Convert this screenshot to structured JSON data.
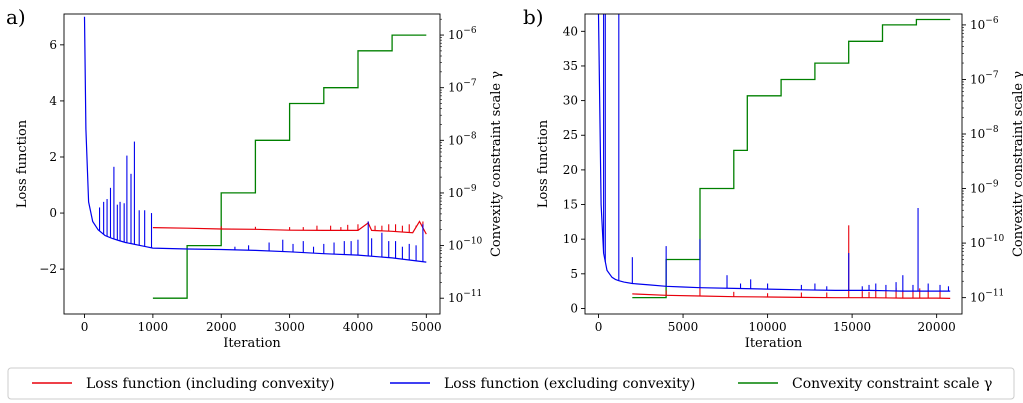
{
  "colors": {
    "red": "#e8000b",
    "blue": "#0000ee",
    "green": "#008000",
    "axis": "#000000"
  },
  "legend": {
    "items": [
      {
        "label": "Loss function (including convexity)",
        "color": "#e8000b"
      },
      {
        "label": "Loss function (excluding convexity)",
        "color": "#0000ee"
      },
      {
        "label": "Convexity constraint scale γ",
        "color": "#008000"
      }
    ]
  },
  "chart_data": [
    {
      "panel_label": "a)",
      "type": "line",
      "xlabel": "Iteration",
      "ylabel": "Loss function",
      "y2label": "Convexity constraint scale γ",
      "xlim": [
        -300,
        5200
      ],
      "ylim": [
        -3.6,
        7.1
      ],
      "y2lim_log10": [
        -11.3,
        -5.6
      ],
      "xticks": [
        0,
        1000,
        2000,
        3000,
        4000,
        5000
      ],
      "xtick_labels": [
        "0",
        "1000",
        "2000",
        "3000",
        "4000",
        "5000"
      ],
      "yticks": [
        -2,
        0,
        2,
        4,
        6
      ],
      "ytick_labels": [
        "−2",
        "0",
        "2",
        "4",
        "6"
      ],
      "y2ticks_log10": [
        -11,
        -10,
        -9,
        -8,
        -7,
        -6
      ],
      "y2tick_labels": [
        "10−11",
        "10−10",
        "10−9",
        "10−8",
        "10−7",
        "10−6"
      ],
      "series": [
        {
          "name": "Loss function (including convexity)",
          "color": "red",
          "x": [
            1000,
            1500,
            2000,
            2500,
            3000,
            3500,
            4000,
            4150,
            4200,
            4500,
            4800,
            4900,
            5000
          ],
          "y": [
            -0.52,
            -0.54,
            -0.57,
            -0.58,
            -0.61,
            -0.62,
            -0.62,
            -0.35,
            -0.62,
            -0.65,
            -0.7,
            -0.3,
            -0.75
          ],
          "spikes": {
            "x": [
              2000,
              2500,
              3000,
              3200,
              3400,
              3600,
              3750,
              3850,
              4000,
              4150,
              4250,
              4350,
              4450,
              4550,
              4650,
              4750,
              4850,
              4950
            ],
            "y": [
              -0.47,
              -0.49,
              -0.5,
              -0.5,
              -0.45,
              -0.45,
              -0.5,
              -0.42,
              -0.4,
              -0.3,
              -0.45,
              -0.45,
              -0.4,
              -0.4,
              -0.45,
              -0.4,
              -0.45,
              -0.3
            ]
          }
        },
        {
          "name": "Loss function (excluding convexity)",
          "color": "blue",
          "x": [
            0,
            20,
            60,
            120,
            200,
            300,
            400,
            500,
            600,
            700,
            800,
            900,
            1000,
            1500,
            2000,
            2500,
            3000,
            3500,
            4000,
            4500,
            5000
          ],
          "y": [
            7.0,
            3.0,
            0.4,
            -0.3,
            -0.6,
            -0.8,
            -0.9,
            -0.98,
            -1.05,
            -1.1,
            -1.15,
            -1.2,
            -1.25,
            -1.28,
            -1.3,
            -1.33,
            -1.38,
            -1.45,
            -1.5,
            -1.6,
            -1.75
          ],
          "spikes": {
            "x": [
              220,
              280,
              330,
              380,
              430,
              480,
              520,
              580,
              620,
              680,
              730,
              800,
              880,
              980,
              2200,
              2400,
              2700,
              2900,
              3050,
              3200,
              3350,
              3500,
              3650,
              3800,
              3900,
              4000,
              4150,
              4200,
              4350,
              4450,
              4550,
              4650,
              4750,
              4850,
              4950
            ],
            "y": [
              0.2,
              0.4,
              0.5,
              0.9,
              1.65,
              0.3,
              0.4,
              0.35,
              2.05,
              1.4,
              2.55,
              0.1,
              0.1,
              0.0,
              -1.2,
              -1.15,
              -1.05,
              -0.95,
              -1.1,
              -1.0,
              -1.2,
              -1.1,
              -1.05,
              -1.0,
              -1.0,
              -0.95,
              -0.3,
              -0.9,
              -0.7,
              -1.0,
              -1.0,
              -1.2,
              -1.1,
              -1.15,
              -0.4
            ]
          }
        },
        {
          "name": "Convexity constraint scale γ",
          "color": "green",
          "axis": "right-log",
          "step_x": [
            1000,
            1500,
            2000,
            2500,
            3000,
            3500,
            4000,
            4500,
            5000
          ],
          "step_log10": [
            -11.0,
            -10.0,
            -9.0,
            -8.0,
            -7.3,
            -7.0,
            -6.3,
            -6.0
          ]
        }
      ]
    },
    {
      "panel_label": "b)",
      "type": "line",
      "xlabel": "Iteration",
      "ylabel": "Loss function",
      "y2label": "Convexity constraint scale γ",
      "xlim": [
        -800,
        21500
      ],
      "ylim": [
        -0.8,
        42.5
      ],
      "y2lim_log10": [
        -11.3,
        -5.8
      ],
      "xticks": [
        0,
        5000,
        10000,
        15000,
        20000
      ],
      "xtick_labels": [
        "0",
        "5000",
        "10000",
        "15000",
        "20000"
      ],
      "yticks": [
        0,
        5,
        10,
        15,
        20,
        25,
        30,
        35,
        40
      ],
      "ytick_labels": [
        "0",
        "5",
        "10",
        "15",
        "20",
        "25",
        "30",
        "35",
        "40"
      ],
      "y2ticks_log10": [
        -11,
        -10,
        -9,
        -8,
        -7,
        -6
      ],
      "y2tick_labels": [
        "10−11",
        "10−10",
        "10−9",
        "10−8",
        "10−7",
        "10−6"
      ],
      "series": [
        {
          "name": "Loss function (including convexity)",
          "color": "red",
          "x": [
            2000,
            4000,
            6000,
            8000,
            10000,
            12000,
            14000,
            16000,
            18000,
            20000,
            20800
          ],
          "y": [
            2.1,
            1.9,
            1.8,
            1.7,
            1.65,
            1.6,
            1.55,
            1.55,
            1.5,
            1.5,
            1.45
          ],
          "spikes": {
            "x": [
              4000,
              6000,
              8000,
              10000,
              12000,
              13500,
              14800,
              15600,
              16000,
              16400,
              17000,
              17600,
              18000,
              18600,
              19000,
              19500,
              20200
            ],
            "y": [
              2.6,
              3.0,
              2.4,
              2.2,
              2.3,
              2.3,
              12.0,
              2.5,
              2.4,
              2.6,
              2.5,
              3.0,
              2.6,
              2.7,
              2.9,
              2.5,
              2.6
            ]
          }
        },
        {
          "name": "Loss function (excluding convexity)",
          "color": "blue",
          "x": [
            0,
            150,
            300,
            500,
            800,
            1000,
            1200,
            1500,
            2000,
            3000,
            4000,
            5000,
            6000,
            8000,
            10000,
            12000,
            14000,
            16000,
            18000,
            20000,
            20800
          ],
          "y": [
            42.5,
            15.0,
            8.0,
            5.5,
            4.5,
            4.2,
            4.0,
            3.8,
            3.6,
            3.4,
            3.2,
            3.1,
            3.0,
            2.9,
            2.8,
            2.7,
            2.6,
            2.6,
            2.5,
            2.5,
            2.5
          ],
          "spikes": {
            "x": [
              300,
              400,
              1200,
              2000,
              4000,
              6000,
              7600,
              8400,
              9000,
              10000,
              12000,
              12800,
              13500,
              14800,
              15600,
              16000,
              16400,
              17000,
              17600,
              18000,
              18600,
              18900,
              19500,
              20200,
              20700
            ],
            "y": [
              42.5,
              42.5,
              42.5,
              7.4,
              9.0,
              10.0,
              4.8,
              3.6,
              4.2,
              3.6,
              3.4,
              3.6,
              3.2,
              8.0,
              3.2,
              3.4,
              3.6,
              3.4,
              3.8,
              4.8,
              3.4,
              14.5,
              3.6,
              3.4,
              3.2
            ]
          }
        },
        {
          "name": "Convexity constraint scale γ",
          "color": "green",
          "axis": "right-log",
          "step_x": [
            2000,
            4000,
            6000,
            8000,
            8800,
            10800,
            12800,
            14800,
            16800,
            18800,
            20800
          ],
          "step_log10": [
            -11.0,
            -10.3,
            -9.0,
            -8.3,
            -7.3,
            -7.0,
            -6.7,
            -6.3,
            -6.0,
            -5.9
          ]
        }
      ]
    }
  ]
}
